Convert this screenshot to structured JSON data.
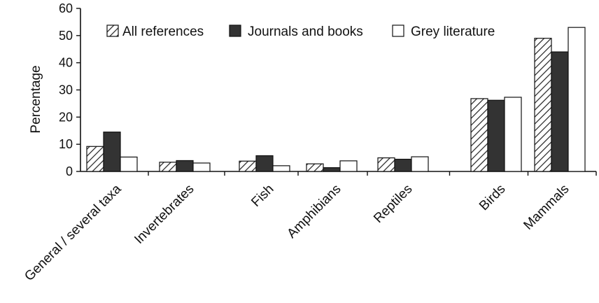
{
  "chart_data": {
    "type": "bar",
    "title": "",
    "xlabel": "",
    "ylabel": "Percentage",
    "ylim": [
      0,
      60
    ],
    "yticks": [
      0,
      10,
      20,
      30,
      40,
      50,
      60
    ],
    "grid": false,
    "legend_position": "top-right",
    "categories": [
      "General / several taxa",
      "Invertebrates",
      "Fish",
      "Amphibians",
      "Reptiles",
      "Birds",
      "Mammals"
    ],
    "series": [
      {
        "name": "All references",
        "style": "hatched",
        "color": "#ffffff",
        "values": [
          9.2,
          3.4,
          3.8,
          2.8,
          5.0,
          26.8,
          49.0
        ]
      },
      {
        "name": "Journals and books",
        "style": "solid",
        "color": "#333333",
        "values": [
          14.5,
          4.0,
          5.8,
          1.4,
          4.5,
          26.2,
          44.0
        ]
      },
      {
        "name": "Grey literature",
        "style": "outline",
        "color": "#ffffff",
        "values": [
          5.3,
          3.1,
          2.1,
          3.9,
          5.4,
          27.3,
          53.0
        ]
      }
    ]
  }
}
